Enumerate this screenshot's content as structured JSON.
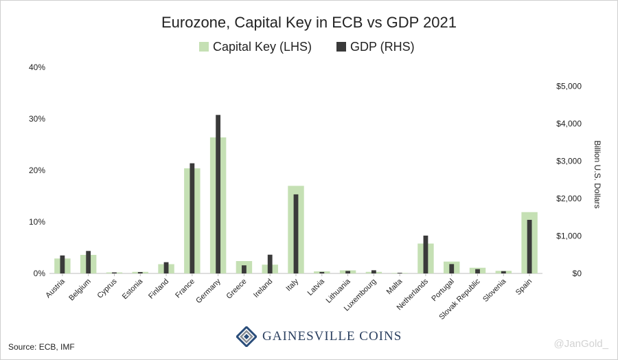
{
  "chart_data": {
    "type": "bar",
    "title": "Eurozone, Capital Key in ECB vs GDP 2021",
    "categories": [
      "Austria",
      "Belgium",
      "Cyprus",
      "Estonia",
      "Finland",
      "France",
      "Germany",
      "Greece",
      "Ireland",
      "Italy",
      "Latvia",
      "Lithuania",
      "Luxembourg",
      "Malta",
      "Netherlands",
      "Portugal",
      "Slovak Republic",
      "Slovenia",
      "Spain"
    ],
    "series": [
      {
        "name": "Capital Key (LHS)",
        "axis": "left",
        "color": "#c5e0b4",
        "values": [
          2.9,
          3.6,
          0.2,
          0.3,
          1.8,
          20.4,
          26.4,
          2.4,
          1.7,
          17.0,
          0.4,
          0.6,
          0.3,
          0.1,
          5.8,
          2.3,
          1.1,
          0.5,
          11.9
        ]
      },
      {
        "name": "GDP (RHS)",
        "axis": "right",
        "color": "#3a3a3a",
        "values": [
          480,
          600,
          28,
          37,
          300,
          2940,
          4230,
          216,
          500,
          2110,
          39,
          66,
          85,
          17,
          1010,
          250,
          115,
          61,
          1430
        ]
      }
    ],
    "y_left": {
      "ylim": [
        0,
        40
      ],
      "ticks": [
        "0%",
        "10%",
        "20%",
        "30%",
        "40%"
      ],
      "tick_values": [
        0,
        10,
        20,
        30,
        40
      ]
    },
    "y_right": {
      "ylim": [
        0,
        5500
      ],
      "ticks": [
        "$0",
        "$1,000",
        "$2,000",
        "$3,000",
        "$4,000",
        "$5,000"
      ],
      "tick_values": [
        0,
        1000,
        2000,
        3000,
        4000,
        5000
      ],
      "label": "Billion U.S. Dollars"
    },
    "legend_position": "top-center"
  },
  "footer": {
    "source": "Source: ECB, IMF",
    "logo_text": "GAINESVILLE COINS",
    "watermark": "@JanGold_"
  },
  "colors": {
    "logo_blue": "#2a4d7a",
    "logo_gray": "#8a8f96"
  }
}
